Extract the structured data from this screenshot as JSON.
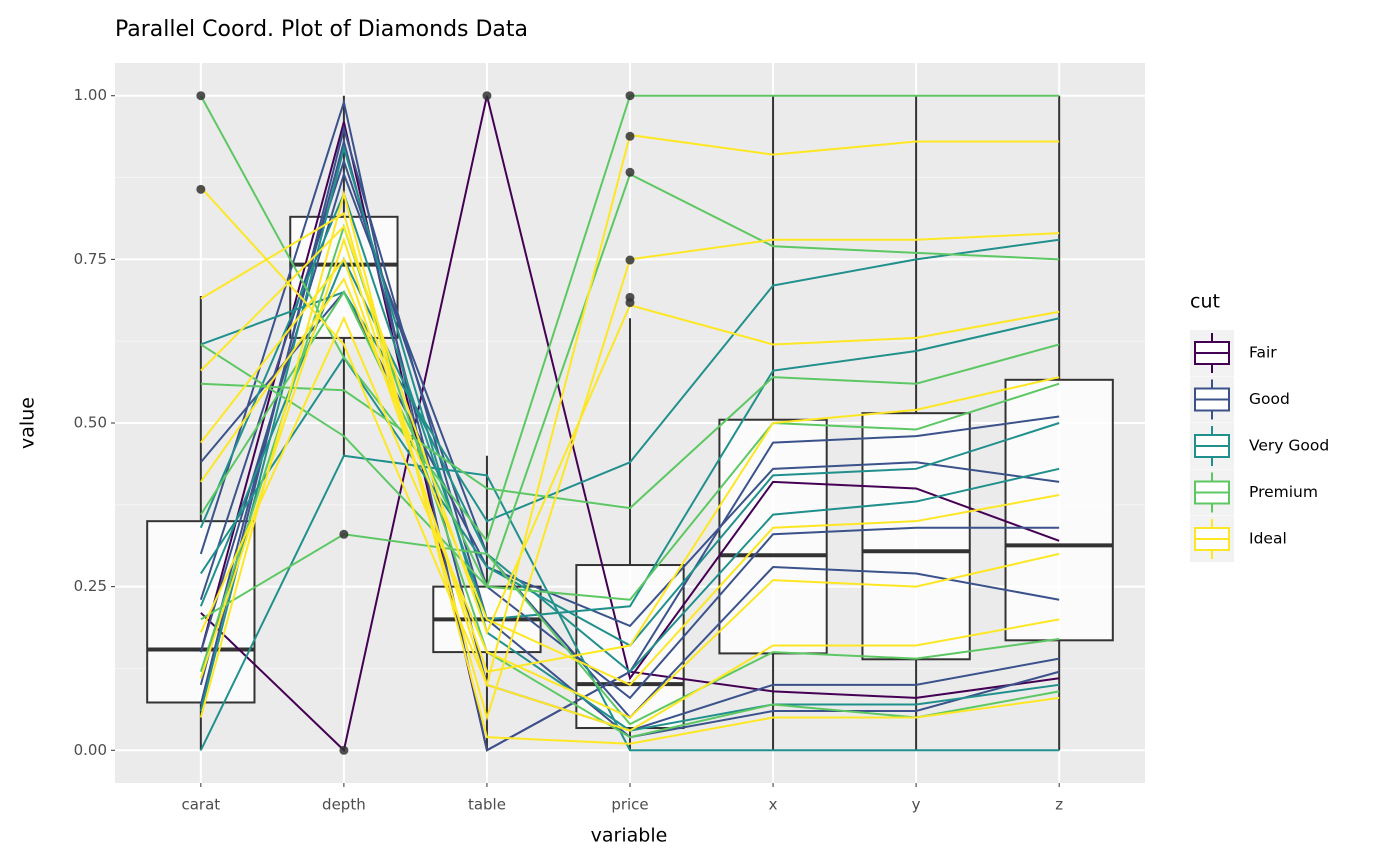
{
  "chart_data": {
    "type": "parallel",
    "title": "Parallel Coord. Plot of Diamonds Data",
    "x_label": "variable",
    "y_label": "value",
    "legend_title": "cut",
    "categories": [
      "carat",
      "depth",
      "table",
      "price",
      "x",
      "y",
      "z"
    ],
    "ylim": [
      -0.05,
      1.05
    ],
    "yticks": [
      {
        "value": 0,
        "label": "0.00"
      },
      {
        "value": 0.25,
        "label": "0.25"
      },
      {
        "value": 0.5,
        "label": "0.50"
      },
      {
        "value": 0.75,
        "label": "0.75"
      },
      {
        "value": 1,
        "label": "1.00"
      }
    ],
    "grid": true,
    "legend_position": "right",
    "boxes": [
      {
        "low": 0,
        "q1": 0.073,
        "median": 0.154,
        "q3": 0.35,
        "high": 0.694,
        "outliers": [
          1.0,
          0.857
        ]
      },
      {
        "low": 0.448,
        "q1": 0.63,
        "median": 0.742,
        "q3": 0.815,
        "high": 1.0,
        "outliers": [
          0.33,
          0.0
        ]
      },
      {
        "low": 0,
        "q1": 0.15,
        "median": 0.2,
        "q3": 0.25,
        "high": 0.45,
        "outliers": [
          1.0
        ]
      },
      {
        "low": 0,
        "q1": 0.034,
        "median": 0.101,
        "q3": 0.283,
        "high": 0.66,
        "outliers": [
          1.0,
          0.938,
          0.883,
          0.749,
          0.692,
          0.684
        ]
      },
      {
        "low": 0,
        "q1": 0.148,
        "median": 0.298,
        "q3": 0.505,
        "high": 1.0,
        "outliers": []
      },
      {
        "low": 0,
        "q1": 0.139,
        "median": 0.304,
        "q3": 0.515,
        "high": 1.0,
        "outliers": []
      },
      {
        "low": 0,
        "q1": 0.168,
        "median": 0.313,
        "q3": 0.566,
        "high": 1.0,
        "outliers": []
      }
    ],
    "series": [
      {
        "name": "Fair",
        "color": "#440154",
        "values": [
          [
            0.21,
            0.0,
            1.0,
            0.11,
            0.41,
            0.4,
            0.32
          ],
          [
            0.15,
            0.96,
            0.0,
            0.12,
            0.09,
            0.08,
            0.11
          ]
        ]
      },
      {
        "name": "Good",
        "color": "#3b528b",
        "values": [
          [
            0.3,
            0.99,
            0.0,
            0.12,
            0.47,
            0.48,
            0.51
          ],
          [
            0.07,
            0.95,
            0.2,
            0.02,
            0.06,
            0.06,
            0.12
          ],
          [
            0.23,
            0.9,
            0.25,
            0.08,
            0.33,
            0.34,
            0.34
          ],
          [
            0.15,
            0.88,
            0.3,
            0.05,
            0.28,
            0.27,
            0.23
          ],
          [
            0.44,
            0.7,
            0.28,
            0.19,
            0.43,
            0.44,
            0.41
          ],
          [
            0.1,
            0.93,
            0.1,
            0.03,
            0.1,
            0.1,
            0.14
          ]
        ]
      },
      {
        "name": "Very Good",
        "color": "#21908c",
        "values": [
          [
            0.62,
            0.7,
            0.35,
            0.44,
            0.71,
            0.75,
            0.78
          ],
          [
            0.0,
            0.45,
            0.42,
            0.0,
            0.0,
            0.0,
            0.0
          ],
          [
            0.34,
            0.85,
            0.2,
            0.22,
            0.58,
            0.61,
            0.66
          ],
          [
            0.22,
            0.75,
            0.3,
            0.12,
            0.36,
            0.38,
            0.43
          ],
          [
            0.06,
            0.92,
            0.18,
            0.03,
            0.07,
            0.07,
            0.1
          ],
          [
            0.27,
            0.6,
            0.28,
            0.16,
            0.42,
            0.43,
            0.5
          ]
        ]
      },
      {
        "name": "Premium",
        "color": "#5dc863",
        "values": [
          [
            1.0,
            0.6,
            0.32,
            1.0,
            1.0,
            1.0,
            1.0
          ],
          [
            0.62,
            0.48,
            0.25,
            0.88,
            0.77,
            0.76,
            0.75
          ],
          [
            0.2,
            0.33,
            0.3,
            0.04,
            0.15,
            0.14,
            0.17
          ],
          [
            0.56,
            0.55,
            0.4,
            0.37,
            0.57,
            0.56,
            0.62
          ],
          [
            0.36,
            0.7,
            0.25,
            0.23,
            0.5,
            0.49,
            0.56
          ],
          [
            0.12,
            0.8,
            0.15,
            0.02,
            0.07,
            0.05,
            0.09
          ]
        ]
      },
      {
        "name": "Ideal",
        "color": "#fde725",
        "values": [
          [
            0.86,
            0.62,
            0.1,
            0.94,
            0.91,
            0.93,
            0.93
          ],
          [
            0.69,
            0.82,
            0.05,
            0.75,
            0.78,
            0.78,
            0.79
          ],
          [
            0.58,
            0.8,
            0.18,
            0.68,
            0.62,
            0.63,
            0.67
          ],
          [
            0.47,
            0.75,
            0.12,
            0.16,
            0.5,
            0.52,
            0.57
          ],
          [
            0.41,
            0.72,
            0.2,
            0.1,
            0.34,
            0.35,
            0.39
          ],
          [
            0.05,
            0.85,
            0.02,
            0.01,
            0.05,
            0.05,
            0.08
          ],
          [
            0.18,
            0.66,
            0.15,
            0.05,
            0.26,
            0.25,
            0.3
          ],
          [
            0.11,
            0.78,
            0.1,
            0.03,
            0.16,
            0.16,
            0.2
          ]
        ]
      }
    ]
  }
}
